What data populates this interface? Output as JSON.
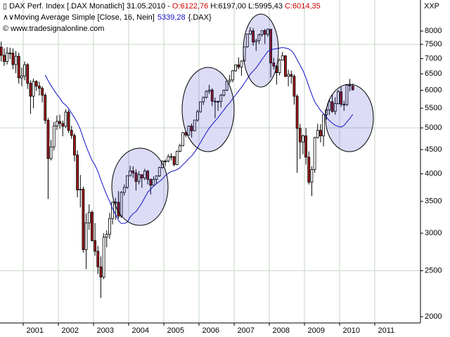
{
  "chart_data": {
    "type": "candlestick",
    "header": {
      "title": "DAX Perf. Index [.DAX  Monatlich] 31.05.2010 - ",
      "open": "O:6122,76",
      "high_low": "H:6197,00 L:5995,43",
      "close": "C:6014,35",
      "ma_label": "Moving Average Simple [Close, 16, Nein]",
      "ma_value": "5339,28",
      "ma_symbol": "{.DAX}",
      "source": "© www.tradesignalonline.com",
      "corner": "XXP"
    },
    "x": [
      "2000-05",
      "2000-06",
      "2000-07",
      "2000-08",
      "2000-09",
      "2000-10",
      "2000-11",
      "2000-12",
      "2001-01",
      "2001-02",
      "2001-03",
      "2001-04",
      "2001-05",
      "2001-06",
      "2001-07",
      "2001-08",
      "2001-09",
      "2001-10",
      "2001-11",
      "2001-12",
      "2002-01",
      "2002-02",
      "2002-03",
      "2002-04",
      "2002-05",
      "2002-06",
      "2002-07",
      "2002-08",
      "2002-09",
      "2002-10",
      "2002-11",
      "2002-12",
      "2003-01",
      "2003-02",
      "2003-03",
      "2003-04",
      "2003-05",
      "2003-06",
      "2003-07",
      "2003-08",
      "2003-09",
      "2003-10",
      "2003-11",
      "2003-12",
      "2004-01",
      "2004-02",
      "2004-03",
      "2004-04",
      "2004-05",
      "2004-06",
      "2004-07",
      "2004-08",
      "2004-09",
      "2004-10",
      "2004-11",
      "2004-12",
      "2005-01",
      "2005-02",
      "2005-03",
      "2005-04",
      "2005-05",
      "2005-06",
      "2005-07",
      "2005-08",
      "2005-09",
      "2005-10",
      "2005-11",
      "2005-12",
      "2006-01",
      "2006-02",
      "2006-03",
      "2006-04",
      "2006-05",
      "2006-06",
      "2006-07",
      "2006-08",
      "2006-09",
      "2006-10",
      "2006-11",
      "2006-12",
      "2007-01",
      "2007-02",
      "2007-03",
      "2007-04",
      "2007-05",
      "2007-06",
      "2007-07",
      "2007-08",
      "2007-09",
      "2007-10",
      "2007-11",
      "2007-12",
      "2008-01",
      "2008-02",
      "2008-03",
      "2008-04",
      "2008-05",
      "2008-06",
      "2008-07",
      "2008-08",
      "2008-09",
      "2008-10",
      "2008-11",
      "2008-12",
      "2009-01",
      "2009-02",
      "2009-03",
      "2009-04",
      "2009-05",
      "2009-06",
      "2009-07",
      "2009-08",
      "2009-09",
      "2009-10",
      "2009-11",
      "2009-12",
      "2010-01",
      "2010-02",
      "2010-03",
      "2010-04",
      "2010-05"
    ],
    "open": [
      7400,
      7109,
      6898,
      7191,
      7188,
      6798,
      7078,
      6372,
      6434,
      6795,
      6208,
      5830,
      6265,
      6123,
      6058,
      5861,
      5188,
      4308,
      4559,
      5045,
      5160,
      5108,
      5039,
      5397,
      4940,
      4818,
      4383,
      3700,
      3713,
      2769,
      3153,
      3320,
      2893,
      2748,
      2547,
      2424,
      2942,
      2983,
      3221,
      3487,
      3485,
      3257,
      3655,
      3746,
      3965,
      4058,
      4018,
      3856,
      3985,
      3921,
      4053,
      3895,
      3785,
      3893,
      3960,
      4126,
      4256,
      4254,
      4350,
      4349,
      4185,
      4461,
      4586,
      4887,
      4829,
      5044,
      4929,
      5193,
      5408,
      5674,
      5797,
      5970,
      6009,
      5692,
      5683,
      5682,
      5859,
      6004,
      6268,
      6309,
      6597,
      6789,
      6716,
      6917,
      7409,
      7883,
      8007,
      7584,
      7638,
      7862,
      8019,
      7871,
      8067,
      6851,
      6748,
      6535,
      6949,
      7097,
      6418,
      6480,
      6422,
      5831,
      4988,
      4669,
      4810,
      4338,
      3843,
      4085,
      4770,
      4941,
      4809,
      5332,
      5458,
      5675,
      5415,
      5625,
      5957,
      5608,
      5598,
      6154,
      6122.76
    ],
    "high": [
      7600,
      7350,
      7400,
      7380,
      7350,
      7260,
      7200,
      6700,
      6900,
      6850,
      6300,
      6350,
      6300,
      6250,
      6120,
      5920,
      5250,
      4720,
      5150,
      5310,
      5330,
      5180,
      5470,
      5460,
      5050,
      4870,
      4480,
      3980,
      3760,
      3300,
      3450,
      3350,
      3150,
      2820,
      2680,
      3000,
      3040,
      3310,
      3500,
      3560,
      3680,
      3680,
      3800,
      3970,
      4160,
      4150,
      4090,
      4050,
      3990,
      4100,
      4080,
      3910,
      3950,
      3970,
      4140,
      4270,
      4290,
      4400,
      4420,
      4360,
      4480,
      4630,
      4900,
      4930,
      5060,
      5110,
      5200,
      5460,
      5680,
      5820,
      6000,
      6160,
      6060,
      5790,
      5710,
      5890,
      6020,
      6270,
      6470,
      6620,
      6800,
      7040,
      6940,
      7410,
      7890,
      8150,
      8110,
      7710,
      7900,
      8030,
      8080,
      8100,
      8080,
      7020,
      6770,
      7000,
      7230,
      7110,
      6630,
      6600,
      6480,
      5880,
      5100,
      4840,
      5000,
      4460,
      4150,
      4790,
      5100,
      5090,
      5350,
      5520,
      5760,
      5890,
      5800,
      6010,
      6100,
      5700,
      6160,
      6340,
      6197
    ],
    "low": [
      6900,
      6750,
      6800,
      6980,
      6650,
      6520,
      6200,
      6120,
      6300,
      6040,
      5350,
      5500,
      5980,
      5850,
      5660,
      5100,
      3540,
      4270,
      4480,
      4950,
      4980,
      4800,
      5000,
      4880,
      4740,
      4250,
      3570,
      3400,
      2730,
      2520,
      3050,
      2880,
      2690,
      2460,
      2190,
      2400,
      2800,
      2920,
      3130,
      3200,
      3220,
      3230,
      3600,
      3720,
      3950,
      3920,
      3690,
      3800,
      3740,
      3880,
      3800,
      3620,
      3770,
      3820,
      3940,
      4100,
      4150,
      4230,
      4270,
      4150,
      4170,
      4440,
      4570,
      4780,
      4820,
      4770,
      4920,
      5150,
      5380,
      5590,
      5760,
      5900,
      5560,
      5240,
      5430,
      5520,
      5820,
      5980,
      6190,
      6240,
      6560,
      6640,
      6440,
      6890,
      7380,
      7850,
      7450,
      7260,
      7520,
      7780,
      7520,
      7780,
      6380,
      6640,
      6170,
      6450,
      6930,
      6400,
      6120,
      6200,
      5600,
      4020,
      4300,
      4400,
      4180,
      3800,
      3590,
      4020,
      4750,
      4660,
      4570,
      5200,
      5320,
      5380,
      5330,
      5600,
      5540,
      5430,
      5560,
      5970,
      5995.43
    ],
    "close": [
      7109,
      6898,
      7191,
      7188,
      6798,
      7078,
      6372,
      6434,
      6795,
      6208,
      5830,
      6265,
      6123,
      6058,
      5861,
      5188,
      4308,
      4559,
      5045,
      5160,
      5108,
      5039,
      5397,
      4940,
      4818,
      4383,
      3700,
      3713,
      2769,
      3153,
      3320,
      2893,
      2748,
      2547,
      2424,
      2942,
      2983,
      3221,
      3487,
      3485,
      3257,
      3655,
      3746,
      3965,
      4058,
      4018,
      3856,
      3985,
      3921,
      4053,
      3895,
      3785,
      3893,
      3960,
      4126,
      4256,
      4254,
      4350,
      4349,
      4185,
      4461,
      4586,
      4887,
      4829,
      5044,
      4929,
      5193,
      5408,
      5674,
      5797,
      5970,
      6009,
      5692,
      5683,
      5682,
      5859,
      6004,
      6268,
      6309,
      6597,
      6789,
      6716,
      6917,
      7409,
      7883,
      8007,
      7584,
      7638,
      7862,
      8019,
      7871,
      8067,
      6851,
      6748,
      6535,
      6949,
      7097,
      6418,
      6480,
      6422,
      5831,
      4988,
      4669,
      4810,
      4338,
      3843,
      4085,
      4770,
      4941,
      4809,
      5332,
      5458,
      5675,
      5415,
      5625,
      5957,
      5608,
      5598,
      6154,
      6136,
      6014.35
    ],
    "up_color": "#ffffff",
    "down_color": "#a01818",
    "outline_color": "#000000",
    "ma": {
      "color": "#1010c8",
      "values": [
        null,
        null,
        null,
        null,
        null,
        null,
        null,
        null,
        null,
        null,
        null,
        null,
        null,
        null,
        null,
        6462,
        6287,
        6141,
        6007,
        5880,
        5775,
        5647,
        5586,
        5493,
        5369,
        5255,
        5122,
        4963,
        4753,
        4571,
        4413,
        4269,
        4172,
        4046,
        3882,
        3743,
        3611,
        3497,
        3378,
        3287,
        3189,
        3144,
        3146,
        3162,
        3243,
        3297,
        3330,
        3399,
        3472,
        3566,
        3658,
        3711,
        3768,
        3814,
        3854,
        3902,
        3964,
        4008,
        4045,
        4059,
        4084,
        4120,
        4184,
        4237,
        4307,
        4362,
        4443,
        4544,
        4656,
        4771,
        4886,
        4995,
        5085,
        5169,
        5252,
        5356,
        5453,
        5558,
        5647,
        5757,
        5866,
        5978,
        6086,
        6211,
        6349,
        6487,
        6588,
        6690,
        6825,
        6971,
        7108,
        7246,
        7299,
        7329,
        7343,
        7365,
        7385,
        7366,
        7339,
        7277,
        7149,
        6960,
        6778,
        6601,
        6381,
        6120,
        5883,
        5677,
        5558,
        5437,
        5361,
        5268,
        5179,
        5117,
        5063,
        5034,
        5020,
        5058,
        5151,
        5234,
        5339.28
      ]
    },
    "log_scale": true,
    "ylim": [
      1940,
      9300
    ],
    "yticks": [
      2000,
      2500,
      3000,
      3500,
      4000,
      4500,
      5000,
      5500,
      6000,
      6500,
      7000,
      7500,
      8000
    ],
    "ygrid": [
      2500,
      5000,
      7500
    ],
    "xlim": [
      2000.34,
      2012.3
    ],
    "xticks": [
      2001,
      2002,
      2003,
      2004,
      2005,
      2006,
      2007,
      2008,
      2009,
      2010,
      2011
    ],
    "grid": true,
    "grid_color": "#c6d6c6"
  }
}
